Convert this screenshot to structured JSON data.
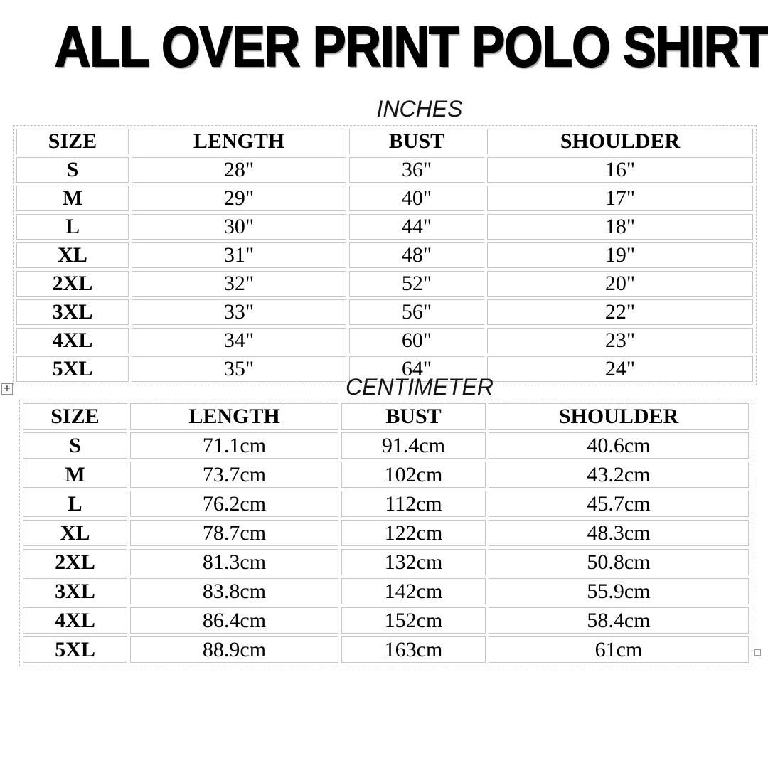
{
  "title": "ALL OVER PRINT POLO SHIRTS",
  "colors": {
    "text": "#0f0f0f",
    "cell_border": "#c6c6c6",
    "outer_border": "#bfbfbf",
    "title_shadow": "#a6a6a6"
  },
  "sections": [
    {
      "label": "INCHES",
      "columns": [
        "SIZE",
        "LENGTH",
        "BUST",
        "SHOULDER"
      ],
      "rows": [
        [
          "S",
          "28\"",
          "36\"",
          "16\""
        ],
        [
          "M",
          "29\"",
          "40\"",
          "17\""
        ],
        [
          "L",
          "30\"",
          "44\"",
          "18\""
        ],
        [
          "XL",
          "31\"",
          "48\"",
          "19\""
        ],
        [
          "2XL",
          "32\"",
          "52\"",
          "20\""
        ],
        [
          "3XL",
          "33\"",
          "56\"",
          "22\""
        ],
        [
          "4XL",
          "34\"",
          "60\"",
          "23\""
        ],
        [
          "5XL",
          "35\"",
          "64\"",
          "24\""
        ]
      ]
    },
    {
      "label": "CENTIMETER",
      "columns": [
        "SIZE",
        "LENGTH",
        "BUST",
        "SHOULDER"
      ],
      "rows": [
        [
          "S",
          "71.1cm",
          "91.4cm",
          "40.6cm"
        ],
        [
          "M",
          "73.7cm",
          "102cm",
          "43.2cm"
        ],
        [
          "L",
          "76.2cm",
          "112cm",
          "45.7cm"
        ],
        [
          "XL",
          "78.7cm",
          "122cm",
          "48.3cm"
        ],
        [
          "2XL",
          "81.3cm",
          "132cm",
          "50.8cm"
        ],
        [
          "3XL",
          "83.8cm",
          "142cm",
          "55.9cm"
        ],
        [
          "4XL",
          "86.4cm",
          "152cm",
          "58.4cm"
        ],
        [
          "5XL",
          "88.9cm",
          "163cm",
          "61cm"
        ]
      ]
    }
  ],
  "handles": {
    "move_glyph": "+",
    "move_icon": "table-move-handle-icon",
    "resize_icon": "table-resize-handle-icon"
  }
}
